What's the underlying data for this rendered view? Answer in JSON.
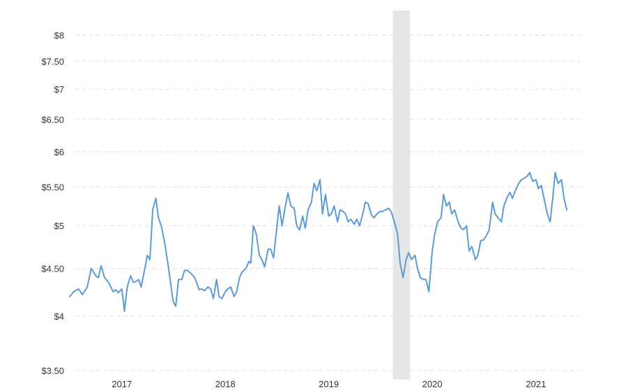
{
  "chart_data": {
    "type": "line",
    "title": "",
    "xlabel": "",
    "ylabel": "",
    "y_scale": "log",
    "ylim": [
      3.5,
      8.5
    ],
    "xlim": [
      "2016-07-01",
      "2021-06-20"
    ],
    "grid": true,
    "legend": "none",
    "y_ticks": [
      {
        "value": 3.5,
        "label": "$3.50"
      },
      {
        "value": 4,
        "label": "$4"
      },
      {
        "value": 4.5,
        "label": "$4.50"
      },
      {
        "value": 5,
        "label": "$5"
      },
      {
        "value": 5.5,
        "label": "$5.50"
      },
      {
        "value": 6,
        "label": "$6"
      },
      {
        "value": 6.5,
        "label": "$6.50"
      },
      {
        "value": 7,
        "label": "$7"
      },
      {
        "value": 7.5,
        "label": "$7.50"
      },
      {
        "value": 8,
        "label": "$8"
      }
    ],
    "x_ticks": [
      {
        "value": "2017-01-01",
        "label": "2017"
      },
      {
        "value": "2018-01-01",
        "label": "2018"
      },
      {
        "value": "2019-01-01",
        "label": "2019"
      },
      {
        "value": "2020-01-01",
        "label": "2020"
      },
      {
        "value": "2021-01-01",
        "label": "2021"
      }
    ],
    "shaded_regions": [
      {
        "start": "2019-08-15",
        "end": "2019-10-15",
        "color": "#e6e6e6"
      }
    ],
    "series": [
      {
        "color": "#5b9bd5",
        "points": [
          [
            "2016-07-01",
            4.2
          ],
          [
            "2016-07-15",
            4.25
          ],
          [
            "2016-08-01",
            4.28
          ],
          [
            "2016-08-15",
            4.22
          ],
          [
            "2016-09-01",
            4.3
          ],
          [
            "2016-09-15",
            4.5
          ],
          [
            "2016-10-01",
            4.42
          ],
          [
            "2016-10-10",
            4.4
          ],
          [
            "2016-10-20",
            4.53
          ],
          [
            "2016-11-01",
            4.4
          ],
          [
            "2016-11-15",
            4.35
          ],
          [
            "2016-12-01",
            4.25
          ],
          [
            "2016-12-10",
            4.27
          ],
          [
            "2016-12-20",
            4.24
          ],
          [
            "2017-01-01",
            4.28
          ],
          [
            "2017-01-10",
            4.05
          ],
          [
            "2017-01-20",
            4.3
          ],
          [
            "2017-02-01",
            4.42
          ],
          [
            "2017-02-10",
            4.35
          ],
          [
            "2017-02-20",
            4.36
          ],
          [
            "2017-03-01",
            4.38
          ],
          [
            "2017-03-10",
            4.3
          ],
          [
            "2017-03-20",
            4.45
          ],
          [
            "2017-04-01",
            4.65
          ],
          [
            "2017-04-10",
            4.6
          ],
          [
            "2017-04-20",
            5.2
          ],
          [
            "2017-05-01",
            5.35
          ],
          [
            "2017-05-10",
            5.1
          ],
          [
            "2017-05-20",
            5.0
          ],
          [
            "2017-06-01",
            4.8
          ],
          [
            "2017-06-15",
            4.5
          ],
          [
            "2017-07-01",
            4.15
          ],
          [
            "2017-07-10",
            4.1
          ],
          [
            "2017-07-20",
            4.38
          ],
          [
            "2017-08-01",
            4.38
          ],
          [
            "2017-08-10",
            4.48
          ],
          [
            "2017-08-20",
            4.48
          ],
          [
            "2017-09-01",
            4.45
          ],
          [
            "2017-09-15",
            4.4
          ],
          [
            "2017-10-01",
            4.27
          ],
          [
            "2017-10-10",
            4.28
          ],
          [
            "2017-10-20",
            4.26
          ],
          [
            "2017-11-01",
            4.3
          ],
          [
            "2017-11-10",
            4.28
          ],
          [
            "2017-11-20",
            4.18
          ],
          [
            "2017-12-01",
            4.38
          ],
          [
            "2017-12-10",
            4.2
          ],
          [
            "2017-12-20",
            4.18
          ],
          [
            "2018-01-01",
            4.25
          ],
          [
            "2018-01-10",
            4.28
          ],
          [
            "2018-01-20",
            4.3
          ],
          [
            "2018-02-01",
            4.2
          ],
          [
            "2018-02-10",
            4.25
          ],
          [
            "2018-02-20",
            4.4
          ],
          [
            "2018-03-01",
            4.46
          ],
          [
            "2018-03-15",
            4.5
          ],
          [
            "2018-03-25",
            4.58
          ],
          [
            "2018-04-01",
            4.56
          ],
          [
            "2018-04-10",
            5.0
          ],
          [
            "2018-04-20",
            4.9
          ],
          [
            "2018-05-01",
            4.65
          ],
          [
            "2018-05-10",
            4.6
          ],
          [
            "2018-05-20",
            4.52
          ],
          [
            "2018-06-01",
            4.72
          ],
          [
            "2018-06-10",
            4.72
          ],
          [
            "2018-06-20",
            4.62
          ],
          [
            "2018-07-01",
            4.95
          ],
          [
            "2018-07-10",
            5.25
          ],
          [
            "2018-07-20",
            5.0
          ],
          [
            "2018-08-01",
            5.25
          ],
          [
            "2018-08-10",
            5.42
          ],
          [
            "2018-08-20",
            5.25
          ],
          [
            "2018-09-01",
            5.22
          ],
          [
            "2018-09-10",
            5.0
          ],
          [
            "2018-09-20",
            4.95
          ],
          [
            "2018-10-01",
            5.12
          ],
          [
            "2018-10-10",
            4.97
          ],
          [
            "2018-10-20",
            5.2
          ],
          [
            "2018-11-01",
            5.3
          ],
          [
            "2018-11-10",
            5.55
          ],
          [
            "2018-11-20",
            5.45
          ],
          [
            "2018-12-01",
            5.6
          ],
          [
            "2018-12-10",
            5.15
          ],
          [
            "2018-12-20",
            5.4
          ],
          [
            "2019-01-01",
            5.12
          ],
          [
            "2019-01-10",
            5.15
          ],
          [
            "2019-01-20",
            5.25
          ],
          [
            "2019-02-01",
            5.05
          ],
          [
            "2019-02-10",
            5.2
          ],
          [
            "2019-02-20",
            5.18
          ],
          [
            "2019-03-01",
            5.15
          ],
          [
            "2019-03-10",
            5.05
          ],
          [
            "2019-03-20",
            5.08
          ],
          [
            "2019-04-01",
            5.02
          ],
          [
            "2019-04-10",
            5.08
          ],
          [
            "2019-04-20",
            5.0
          ],
          [
            "2019-05-01",
            5.15
          ],
          [
            "2019-05-10",
            5.3
          ],
          [
            "2019-05-20",
            5.28
          ],
          [
            "2019-06-01",
            5.13
          ],
          [
            "2019-06-10",
            5.1
          ],
          [
            "2019-06-20",
            5.15
          ],
          [
            "2019-07-01",
            5.18
          ],
          [
            "2019-07-10",
            5.18
          ],
          [
            "2019-07-20",
            5.2
          ],
          [
            "2019-08-01",
            5.22
          ],
          [
            "2019-08-10",
            5.17
          ],
          [
            "2019-08-20",
            5.05
          ],
          [
            "2019-09-01",
            4.9
          ],
          [
            "2019-09-10",
            4.55
          ],
          [
            "2019-09-20",
            4.4
          ],
          [
            "2019-10-01",
            4.6
          ],
          [
            "2019-10-10",
            4.68
          ],
          [
            "2019-10-20",
            4.6
          ],
          [
            "2019-11-01",
            4.65
          ],
          [
            "2019-11-10",
            4.5
          ],
          [
            "2019-11-20",
            4.4
          ],
          [
            "2019-12-01",
            4.38
          ],
          [
            "2019-12-10",
            4.38
          ],
          [
            "2019-12-20",
            4.25
          ],
          [
            "2020-01-01",
            4.7
          ],
          [
            "2020-01-10",
            4.9
          ],
          [
            "2020-01-20",
            5.05
          ],
          [
            "2020-02-01",
            5.1
          ],
          [
            "2020-02-10",
            5.4
          ],
          [
            "2020-02-20",
            5.25
          ],
          [
            "2020-03-01",
            5.3
          ],
          [
            "2020-03-10",
            5.15
          ],
          [
            "2020-03-20",
            5.2
          ],
          [
            "2020-04-01",
            5.05
          ],
          [
            "2020-04-10",
            4.98
          ],
          [
            "2020-04-20",
            4.95
          ],
          [
            "2020-05-01",
            5.0
          ],
          [
            "2020-05-10",
            4.7
          ],
          [
            "2020-05-20",
            4.75
          ],
          [
            "2020-06-01",
            4.6
          ],
          [
            "2020-06-10",
            4.65
          ],
          [
            "2020-06-20",
            4.82
          ],
          [
            "2020-07-01",
            4.83
          ],
          [
            "2020-07-10",
            4.88
          ],
          [
            "2020-07-20",
            4.95
          ],
          [
            "2020-08-01",
            5.3
          ],
          [
            "2020-08-10",
            5.15
          ],
          [
            "2020-08-20",
            5.1
          ],
          [
            "2020-09-01",
            5.05
          ],
          [
            "2020-09-10",
            5.25
          ],
          [
            "2020-09-20",
            5.35
          ],
          [
            "2020-10-01",
            5.43
          ],
          [
            "2020-10-10",
            5.35
          ],
          [
            "2020-10-20",
            5.45
          ],
          [
            "2020-11-01",
            5.55
          ],
          [
            "2020-11-10",
            5.6
          ],
          [
            "2020-11-20",
            5.62
          ],
          [
            "2020-12-01",
            5.65
          ],
          [
            "2020-12-10",
            5.7
          ],
          [
            "2020-12-20",
            5.58
          ],
          [
            "2021-01-01",
            5.6
          ],
          [
            "2021-01-10",
            5.48
          ],
          [
            "2021-01-20",
            5.52
          ],
          [
            "2021-02-01",
            5.3
          ],
          [
            "2021-02-10",
            5.15
          ],
          [
            "2021-02-20",
            5.05
          ],
          [
            "2021-03-01",
            5.35
          ],
          [
            "2021-03-10",
            5.7
          ],
          [
            "2021-03-20",
            5.55
          ],
          [
            "2021-04-01",
            5.6
          ],
          [
            "2021-04-10",
            5.35
          ],
          [
            "2021-04-20",
            5.2
          ]
        ]
      }
    ]
  }
}
